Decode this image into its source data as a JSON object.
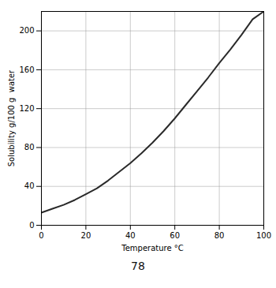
{
  "chart_data": {
    "type": "line",
    "x": [
      0,
      5,
      10,
      15,
      20,
      25,
      30,
      35,
      40,
      45,
      50,
      55,
      60,
      65,
      70,
      75,
      80,
      85,
      90,
      95,
      100
    ],
    "values": [
      13,
      17,
      21,
      26,
      32,
      38,
      46,
      55,
      64,
      74,
      85,
      97,
      110,
      124,
      138,
      152,
      167,
      181,
      196,
      212,
      220
    ],
    "color": "#2a2a2a",
    "xlabel": "Temperature °C",
    "ylabel": "Solubility g/100 g  water",
    "xlim": [
      0,
      100
    ],
    "ylim": [
      0,
      220
    ],
    "xticks": [
      0,
      20,
      40,
      60,
      80,
      100
    ],
    "yticks": [
      0,
      40,
      80,
      120,
      160,
      200
    ],
    "grid": true,
    "caption": "78"
  }
}
